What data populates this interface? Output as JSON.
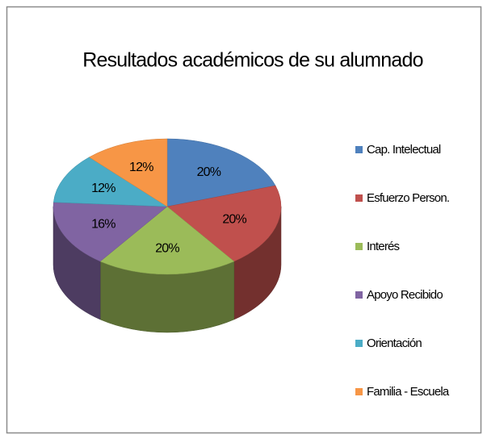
{
  "chart_data": {
    "type": "pie3d",
    "title": "Resultados académicos de su alumnado",
    "categories": [
      "Cap. Intelectual",
      "Esfuerzo Person.",
      "Interés",
      "Apoyo Recibido",
      "Orientación",
      "Familia - Escuela"
    ],
    "values": [
      20,
      20,
      20,
      16,
      12,
      12
    ],
    "value_labels": [
      "20%",
      "20%",
      "20%",
      "16%",
      "12%",
      "12%"
    ],
    "colors": [
      "#4f81bd",
      "#c0504d",
      "#9bbb59",
      "#8064a2",
      "#4bacc6",
      "#f79646"
    ],
    "legend": "right"
  }
}
